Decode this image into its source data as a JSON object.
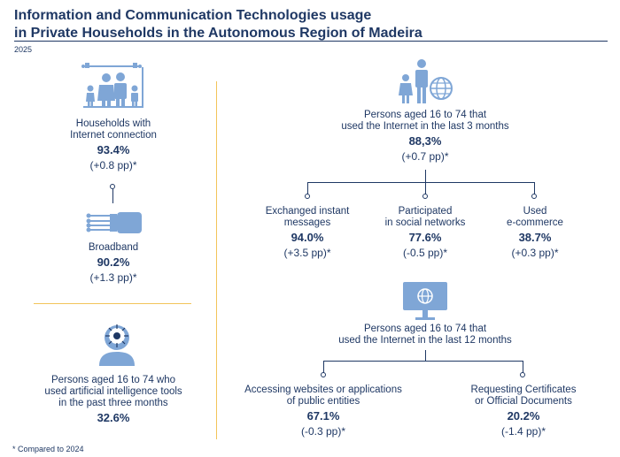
{
  "header": {
    "title_line1": "Information and Communication Technologies usage",
    "title_line2": "in Private Households in the Autonomous Region of Madeira",
    "year": "2025"
  },
  "left": {
    "households": {
      "label1": "Households with",
      "label2": "Internet connection",
      "value": "93.4%",
      "change": "(+0.8 pp)*"
    },
    "broadband": {
      "label1": "Broadband",
      "value": "90.2%",
      "change": "(+1.3 pp)*"
    },
    "ai": {
      "label1": "Persons aged 16 to 74 who",
      "label2": "used artificial intelligence tools",
      "label3": "in the past three months",
      "value": "32.6%"
    }
  },
  "right": {
    "last3": {
      "label1": "Persons aged 16 to 74 that",
      "label2": "used the Internet in the last 3 months",
      "value": "88,3%",
      "change": "(+0.7 pp)*"
    },
    "messages": {
      "label1": "Exchanged instant",
      "label2": "messages",
      "value": "94.0%",
      "change": "(+3.5 pp)*"
    },
    "social": {
      "label1": "Participated",
      "label2": "in social networks",
      "value": "77.6%",
      "change": "(-0.5 pp)*"
    },
    "ecommerce": {
      "label1": "Used",
      "label2": "e-commerce",
      "value": "38.7%",
      "change": "(+0.3 pp)*"
    },
    "last12": {
      "label1": "Persons aged 16 to 74 that",
      "label2": "used the Internet in the last 12 months"
    },
    "public": {
      "label1": "Accessing websites or applications",
      "label2": "of public entities",
      "value": "67.1%",
      "change": "(-0.3 pp)*"
    },
    "certs": {
      "label1": "Requesting Certificates",
      "label2": "or Official Documents",
      "value": "20.2%",
      "change": "(-1.4 pp)*"
    }
  },
  "footnote": "* Compared to 2024",
  "colors": {
    "navy": "#1f3864",
    "icon_blue": "#7fa6d6",
    "divider_yellow": "#f2c45a"
  }
}
